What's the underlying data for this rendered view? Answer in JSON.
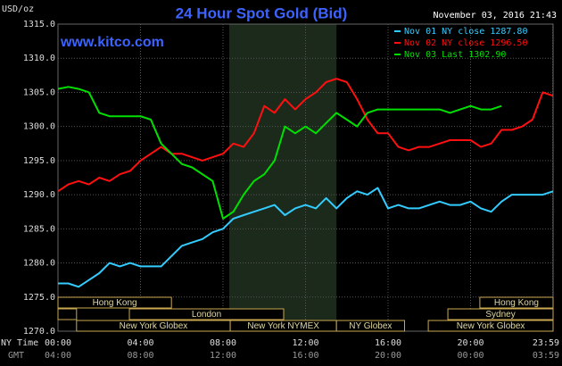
{
  "chart_data": {
    "type": "line",
    "title": "24 Hour Spot Gold (Bid)",
    "subtitle": "www.kitco.com",
    "y_label": "USD/oz",
    "timestamp": "November 03, 2016 21:43",
    "x_label": "NY Time",
    "x2_label": "GMT",
    "x": [
      0,
      0.5,
      1,
      1.5,
      2,
      2.5,
      3,
      3.5,
      4,
      4.5,
      5,
      5.5,
      6,
      6.5,
      7,
      7.5,
      8,
      8.5,
      9,
      9.5,
      10,
      10.5,
      11,
      11.5,
      12,
      12.5,
      13,
      13.5,
      14,
      14.5,
      15,
      15.5,
      16,
      16.5,
      17,
      17.5,
      18,
      18.5,
      19,
      19.5,
      20,
      20.5,
      21,
      21.5,
      22,
      22.5,
      23,
      23.5,
      24
    ],
    "series": [
      {
        "name": "Nov 01 NY close 1287.80",
        "color": "#33ccff",
        "values": [
          1277,
          1277,
          1276.5,
          1277.5,
          1278.5,
          1280,
          1279.5,
          1280,
          1279.5,
          1279.5,
          1279.5,
          1281,
          1282.5,
          1283,
          1283.5,
          1284.5,
          1285,
          1286.5,
          1287,
          1287.5,
          1288,
          1288.5,
          1287,
          1288,
          1288.5,
          1288,
          1289.5,
          1288,
          1289.5,
          1290.5,
          1290,
          1291,
          1288,
          1288.5,
          1288,
          1288,
          1288.5,
          1289,
          1288.5,
          1288.5,
          1289,
          1288,
          1287.5,
          1289,
          1290,
          1290,
          1290,
          1290,
          1290.5
        ]
      },
      {
        "name": "Nov 02 NY close 1296.50",
        "color": "#ff1010",
        "values": [
          1290.5,
          1291.5,
          1292,
          1291.5,
          1292.5,
          1292,
          1293,
          1293.5,
          1295,
          1296,
          1297,
          1296,
          1296,
          1295.5,
          1295,
          1295.5,
          1296,
          1297.5,
          1297,
          1299,
          1303,
          1302,
          1304,
          1302.5,
          1304,
          1305,
          1306.5,
          1307,
          1306.5,
          1304,
          1301,
          1299,
          1299,
          1297,
          1296.5,
          1297,
          1297,
          1297.5,
          1298,
          1298,
          1298,
          1297,
          1297.5,
          1299.5,
          1299.5,
          1300,
          1301,
          1305,
          1304.5
        ]
      },
      {
        "name": "Nov 03 Last 1302.90",
        "color": "#00e000",
        "values": [
          1305.5,
          1305.8,
          1305.5,
          1305,
          1302,
          1301.5,
          1301.5,
          1301.5,
          1301.5,
          1301,
          1297.5,
          1296,
          1294.5,
          1294,
          1293,
          1292,
          1286.5,
          1287.5,
          1290,
          1292,
          1293,
          1295,
          1300,
          1299,
          1300,
          1299,
          1300.5,
          1302,
          1301,
          1300,
          1302,
          1302.5,
          1302.5,
          1302.5,
          1302.5,
          1302.5,
          1302.5,
          1302.5,
          1302,
          1302.5,
          1303,
          1302.5,
          1302.5,
          1303,
          null,
          null,
          null,
          null,
          null
        ]
      }
    ],
    "xlim": [
      0,
      24
    ],
    "xticks": [
      {
        "value": 0,
        "label": "00:00"
      },
      {
        "value": 4,
        "label": "04:00"
      },
      {
        "value": 8,
        "label": "08:00"
      },
      {
        "value": 12,
        "label": "12:00"
      },
      {
        "value": 16,
        "label": "16:00"
      },
      {
        "value": 20,
        "label": "20:00"
      },
      {
        "value": 23.983,
        "label": "23:59"
      }
    ],
    "x2tick_labels": [
      "04:00",
      "08:00",
      "12:00",
      "16:00",
      "20:00",
      "00:00",
      "03:59"
    ],
    "ylim": [
      1270,
      1315
    ],
    "yticks": [
      {
        "value": 1270,
        "label": "1270.0"
      },
      {
        "value": 1275,
        "label": "1275.0"
      },
      {
        "value": 1280,
        "label": "1280.0"
      },
      {
        "value": 1285,
        "label": "1285.0"
      },
      {
        "value": 1290,
        "label": "1290.0"
      },
      {
        "value": 1295,
        "label": "1295.0"
      },
      {
        "value": 1300,
        "label": "1300.0"
      },
      {
        "value": 1305,
        "label": "1305.0"
      },
      {
        "value": 1310,
        "label": "1310.0"
      },
      {
        "value": 1315,
        "label": "1315.0"
      }
    ],
    "grid": true,
    "shade": [
      8.3,
      13.5
    ],
    "sessions": [
      {
        "label": "Hong Kong",
        "row": 0,
        "start": 0,
        "end": 5.5
      },
      {
        "label": "Hong Kong",
        "row": 0,
        "start": 20.45,
        "end": 24
      },
      {
        "row": 1,
        "start": 0,
        "end": 0.9
      },
      {
        "label": "London",
        "row": 1,
        "start": 3.46,
        "end": 10.94
      },
      {
        "label": "Sydney",
        "row": 1,
        "start": 18.9,
        "end": 24
      },
      {
        "label": "New York Globex",
        "row": 2,
        "start": 0.9,
        "end": 8.35
      },
      {
        "label": "New York NYMEX",
        "row": 2,
        "start": 8.35,
        "end": 13.5
      },
      {
        "label": "NY Globex",
        "row": 2,
        "start": 13.5,
        "end": 16.8
      },
      {
        "label": "New York Globex",
        "row": 2,
        "start": 17.95,
        "end": 24
      }
    ]
  }
}
